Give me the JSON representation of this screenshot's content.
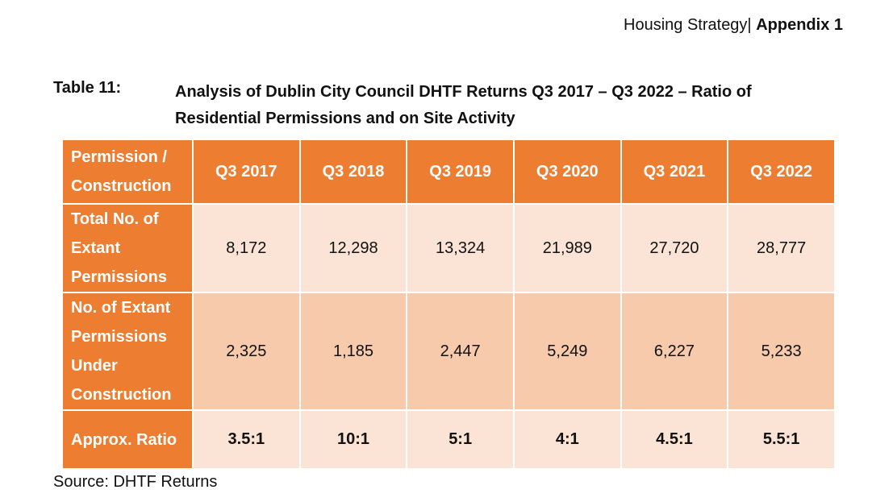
{
  "header": {
    "doc": "Housing Strategy|",
    "appendix": "Appendix 1"
  },
  "caption": {
    "label": "Table 11:",
    "text": "Analysis of Dublin City Council DHTF Returns Q3 2017 – Q3 2022 – Ratio of Residential Permissions and on Site Activity"
  },
  "table": {
    "corner": "Permission / Construction",
    "columns": [
      "Q3 2017",
      "Q3 2018",
      "Q3 2019",
      "Q3 2020",
      "Q3 2021",
      "Q3 2022"
    ],
    "rows": [
      {
        "label": "Total No. of Extant Permissions",
        "values": [
          "8,172",
          "12,298",
          "13,324",
          "21,989",
          "27,720",
          "28,777"
        ]
      },
      {
        "label": "No. of Extant Permissions Under Construction",
        "values": [
          "2,325",
          "1,185",
          "2,447",
          "5,249",
          "6,227",
          "5,233"
        ]
      },
      {
        "label": "Approx. Ratio",
        "values": [
          "3.5:1",
          "10:1",
          "5:1",
          "4:1",
          "4.5:1",
          "5.5:1"
        ]
      }
    ]
  },
  "source": "Source: DHTF Returns",
  "colors": {
    "header": "#ED7D31",
    "light": "#FBE4D5",
    "mid": "#F7CAAC"
  }
}
